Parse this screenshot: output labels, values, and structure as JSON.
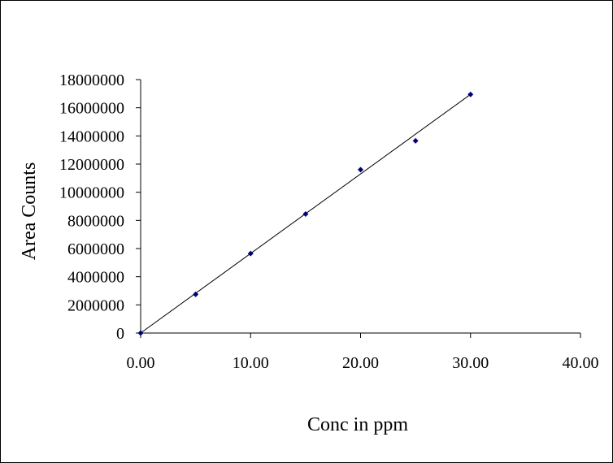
{
  "chart_data": {
    "type": "scatter",
    "title": "",
    "xlabel": "Conc in ppm",
    "ylabel": "Area Counts",
    "xlim": [
      0,
      40
    ],
    "ylim": [
      0,
      18000000
    ],
    "x_ticks": [
      0,
      10,
      20,
      30,
      40
    ],
    "x_tick_labels": [
      "0.00",
      "10.00",
      "20.00",
      "30.00",
      "40.00"
    ],
    "y_ticks": [
      0,
      2000000,
      4000000,
      6000000,
      8000000,
      10000000,
      12000000,
      14000000,
      16000000,
      18000000
    ],
    "y_tick_labels": [
      "0",
      "2000000",
      "4000000",
      "6000000",
      "8000000",
      "10000000",
      "12000000",
      "14000000",
      "16000000",
      "18000000"
    ],
    "grid": false,
    "legend": "none",
    "series": [
      {
        "x": [
          0,
          5,
          10,
          15,
          20,
          25,
          30
        ],
        "y": [
          0,
          2750000,
          5650000,
          8450000,
          11600000,
          13650000,
          16950000
        ],
        "color": "#00007a",
        "marker": "diamond"
      }
    ],
    "trendline": {
      "type": "linear",
      "x": [
        0,
        30
      ],
      "y": [
        0,
        16950000
      ],
      "color": "#000000"
    }
  }
}
